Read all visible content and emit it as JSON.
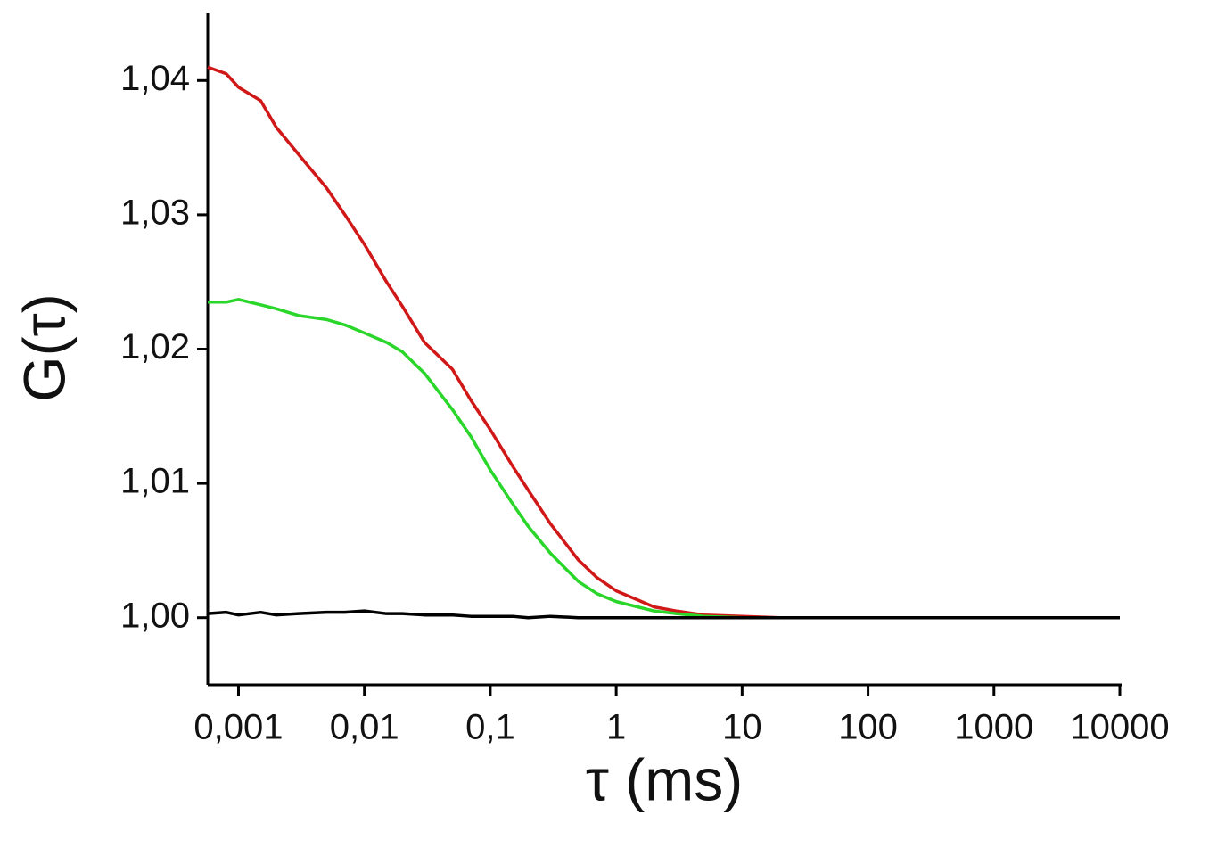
{
  "chart_data": {
    "type": "line",
    "x_label": "τ (ms)",
    "y_label": "G(τ)",
    "xscale": "log",
    "grid": false,
    "xlim": [
      0.00057,
      10000
    ],
    "ylim": [
      0.995,
      1.045
    ],
    "xticks": [
      {
        "value": 0.001,
        "label": "0,001"
      },
      {
        "value": 0.01,
        "label": "0,01"
      },
      {
        "value": 0.1,
        "label": "0,1"
      },
      1,
      10,
      100,
      1000,
      10000
    ],
    "yticks": [
      {
        "value": 1.0,
        "label": "1,00"
      },
      {
        "value": 1.01,
        "label": "1,01"
      },
      {
        "value": 1.02,
        "label": "1,02"
      },
      {
        "value": 1.03,
        "label": "1,03"
      },
      {
        "value": 1.04,
        "label": "1,04"
      }
    ],
    "x": [
      0.00057,
      0.0008,
      0.001,
      0.0015,
      0.002,
      0.003,
      0.005,
      0.007,
      0.01,
      0.015,
      0.02,
      0.03,
      0.05,
      0.07,
      0.1,
      0.15,
      0.2,
      0.3,
      0.5,
      0.7,
      1,
      2,
      3,
      5,
      10,
      20,
      50,
      100,
      1000,
      10000
    ],
    "series": [
      {
        "color": "#d01818",
        "values": [
          1.041,
          1.0405,
          1.0395,
          1.0385,
          1.0365,
          1.0345,
          1.032,
          1.03,
          1.0278,
          1.025,
          1.0232,
          1.0205,
          1.0185,
          1.0162,
          1.014,
          1.0113,
          1.0095,
          1.007,
          1.0043,
          1.003,
          1.002,
          1.0008,
          1.0005,
          1.0002,
          1.0001,
          1.0,
          1.0,
          1.0,
          1.0,
          1.0
        ]
      },
      {
        "color": "#2ad62a",
        "values": [
          1.0235,
          1.0235,
          1.0237,
          1.0233,
          1.023,
          1.0225,
          1.0222,
          1.0218,
          1.0212,
          1.0205,
          1.0198,
          1.0182,
          1.0155,
          1.0135,
          1.011,
          1.0085,
          1.0068,
          1.0048,
          1.0027,
          1.0018,
          1.0012,
          1.0005,
          1.0003,
          1.0001,
          1.0,
          1.0,
          1.0,
          1.0,
          1.0,
          1.0
        ]
      },
      {
        "color": "#000000",
        "values": [
          1.0003,
          1.0004,
          1.0002,
          1.0004,
          1.0002,
          1.0003,
          1.0004,
          1.0004,
          1.0005,
          1.0003,
          1.0003,
          1.0002,
          1.0002,
          1.0001,
          1.0001,
          1.0001,
          1.0,
          1.0001,
          1.0,
          1.0,
          1.0,
          1.0,
          1.0,
          1.0,
          1.0,
          1.0,
          1.0,
          1.0,
          1.0,
          1.0
        ]
      }
    ]
  }
}
